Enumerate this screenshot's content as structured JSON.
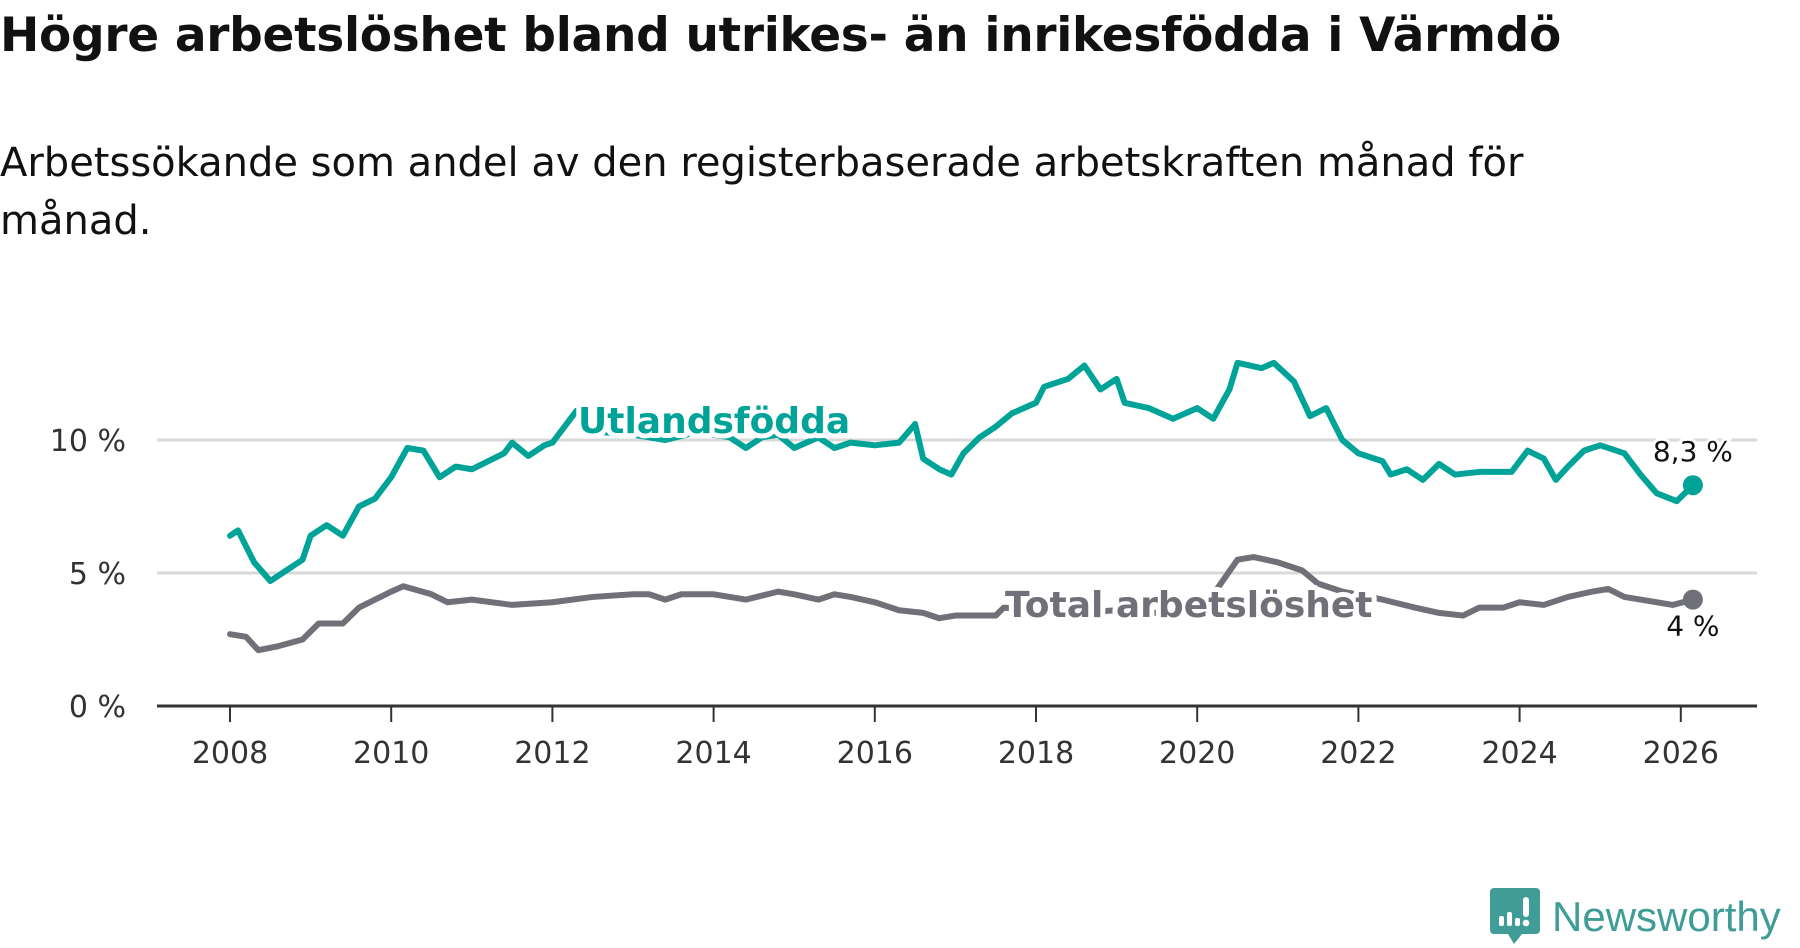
{
  "chart_data": {
    "type": "line",
    "title": "Högre arbetslöshet bland utrikes- än inrikesfödda i Värmdö",
    "subtitle": "Arbetssökande som andel av den registerbaserade arbetskraften månad för månad.",
    "xlabel": "",
    "ylabel": "",
    "xlim": [
      2007.1,
      2027.1
    ],
    "ylim": [
      0,
      14
    ],
    "x_ticks": [
      "2008",
      "2010",
      "2012",
      "2014",
      "2016",
      "2018",
      "2020",
      "2022",
      "2024",
      "2026"
    ],
    "y_ticks": [
      "0 %",
      "5 %",
      "10 %"
    ],
    "grid": true,
    "series": [
      {
        "name": "Utlandsfödda",
        "color": "#00a398",
        "end_label": "8,3 %",
        "x": [
          2008.0,
          2008.1,
          2008.3,
          2008.5,
          2008.7,
          2008.9,
          2009.0,
          2009.2,
          2009.4,
          2009.6,
          2009.8,
          2010.0,
          2010.2,
          2010.4,
          2010.6,
          2010.8,
          2011.0,
          2011.2,
          2011.4,
          2011.5,
          2011.7,
          2011.9,
          2012.0,
          2012.3,
          2012.6,
          2013.0,
          2013.4,
          2013.8,
          2014.2,
          2014.4,
          2014.6,
          2014.8,
          2015.0,
          2015.3,
          2015.5,
          2015.7,
          2016.0,
          2016.3,
          2016.5,
          2016.6,
          2016.8,
          2016.95,
          2017.1,
          2017.3,
          2017.5,
          2017.7,
          2018.0,
          2018.1,
          2018.4,
          2018.6,
          2018.8,
          2019.0,
          2019.1,
          2019.4,
          2019.7,
          2020.0,
          2020.2,
          2020.4,
          2020.5,
          2020.8,
          2020.95,
          2021.2,
          2021.4,
          2021.6,
          2021.8,
          2022.0,
          2022.3,
          2022.4,
          2022.6,
          2022.8,
          2023.0,
          2023.2,
          2023.5,
          2023.9,
          2024.1,
          2024.3,
          2024.45,
          2024.6,
          2024.8,
          2025.0,
          2025.3,
          2025.5,
          2025.7,
          2025.95,
          2026.05,
          2026.15
        ],
        "values": [
          6.4,
          6.6,
          5.4,
          4.7,
          5.1,
          5.5,
          6.4,
          6.8,
          6.4,
          7.5,
          7.8,
          8.6,
          9.7,
          9.6,
          8.6,
          9.0,
          8.9,
          9.2,
          9.5,
          9.9,
          9.4,
          9.8,
          9.9,
          11.1,
          10.3,
          10.2,
          10.0,
          10.3,
          10.1,
          9.7,
          10.1,
          10.2,
          9.7,
          10.1,
          9.7,
          9.9,
          9.8,
          9.9,
          10.6,
          9.3,
          8.9,
          8.7,
          9.5,
          10.1,
          10.5,
          11.0,
          11.4,
          12.0,
          12.3,
          12.8,
          11.9,
          12.3,
          11.4,
          11.2,
          10.8,
          11.2,
          10.8,
          11.9,
          12.9,
          12.7,
          12.9,
          12.2,
          10.9,
          11.2,
          10.0,
          9.5,
          9.2,
          8.7,
          8.9,
          8.5,
          9.1,
          8.7,
          8.8,
          8.8,
          9.6,
          9.3,
          8.5,
          9.0,
          9.6,
          9.8,
          9.5,
          8.7,
          8.0,
          7.7,
          8.0,
          8.3
        ]
      },
      {
        "name": "Total arbetslöshet",
        "color": "#707078",
        "end_label": "4 %",
        "x": [
          2008.0,
          2008.2,
          2008.35,
          2008.6,
          2008.9,
          2009.1,
          2009.4,
          2009.6,
          2009.8,
          2010.0,
          2010.15,
          2010.5,
          2010.7,
          2011.0,
          2011.5,
          2012.0,
          2012.5,
          2013.0,
          2013.2,
          2013.4,
          2013.6,
          2014.0,
          2014.4,
          2014.8,
          2015.0,
          2015.3,
          2015.5,
          2015.7,
          2016.0,
          2016.3,
          2016.6,
          2016.8,
          2017.0,
          2017.5,
          2017.6,
          2018.0,
          2018.5,
          2019.0,
          2019.5,
          2020.0,
          2020.2,
          2020.5,
          2020.7,
          2021.0,
          2021.3,
          2021.5,
          2021.8,
          2022.3,
          2022.7,
          2023.0,
          2023.3,
          2023.5,
          2023.8,
          2024.0,
          2024.3,
          2024.6,
          2024.9,
          2025.1,
          2025.3,
          2025.5,
          2025.9,
          2026.15
        ],
        "values": [
          2.7,
          2.6,
          2.1,
          2.25,
          2.5,
          3.1,
          3.1,
          3.7,
          4.0,
          4.3,
          4.5,
          4.2,
          3.9,
          4.0,
          3.8,
          3.9,
          4.1,
          4.2,
          4.2,
          4.0,
          4.2,
          4.2,
          4.0,
          4.3,
          4.2,
          4.0,
          4.2,
          4.1,
          3.9,
          3.6,
          3.5,
          3.3,
          3.4,
          3.4,
          3.7,
          3.6,
          3.5,
          3.6,
          3.5,
          3.6,
          4.2,
          5.5,
          5.6,
          5.4,
          5.1,
          4.6,
          4.3,
          4.0,
          3.7,
          3.5,
          3.4,
          3.7,
          3.7,
          3.9,
          3.8,
          4.1,
          4.3,
          4.4,
          4.1,
          4.0,
          3.8,
          4.0
        ]
      }
    ]
  },
  "logo": {
    "text": "Newsworthy"
  }
}
